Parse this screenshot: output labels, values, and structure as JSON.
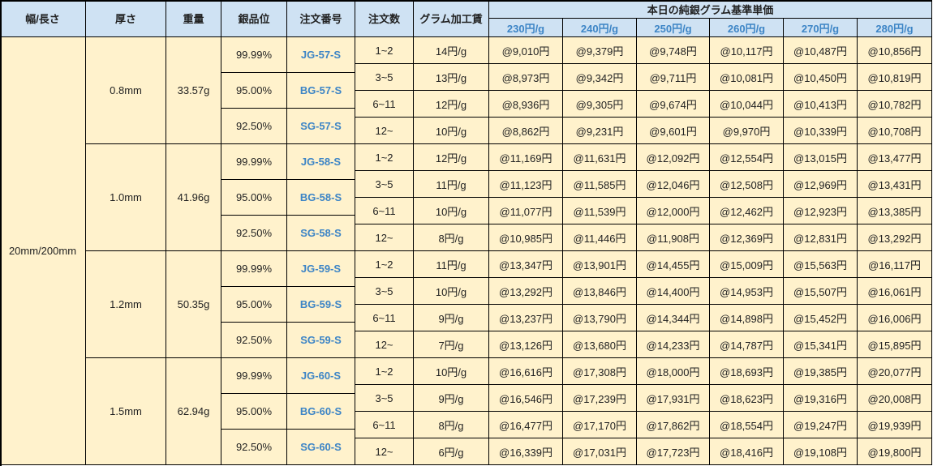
{
  "header": {
    "width_length": "幅/長さ",
    "thickness": "厚さ",
    "weight": "重量",
    "silver_grade": "銀品位",
    "order_number": "注文番号",
    "order_qty": "注文数",
    "gram_fee": "グラム加工賃",
    "base_price_title": "本日の純銀グラム基準単価",
    "base_prices": [
      "230円/g",
      "240円/g",
      "250円/g",
      "260円/g",
      "270円/g",
      "280円/g"
    ]
  },
  "size": "20mm/200mm",
  "blocks": [
    {
      "thickness": "0.8mm",
      "weight": "33.57g",
      "grades": [
        {
          "grade": "99.99%",
          "order": "JG-57-S"
        },
        {
          "grade": "95.00%",
          "order": "BG-57-S"
        },
        {
          "grade": "92.50%",
          "order": "SG-57-S"
        }
      ],
      "rows": [
        {
          "qty": "1~2",
          "fee": "14円/g",
          "prices": [
            "@9,010円",
            "@9,379円",
            "@9,748円",
            "@10,117円",
            "@10,487円",
            "@10,856円"
          ]
        },
        {
          "qty": "3~5",
          "fee": "13円/g",
          "prices": [
            "@8,973円",
            "@9,342円",
            "@9,711円",
            "@10,081円",
            "@10,450円",
            "@10,819円"
          ]
        },
        {
          "qty": "6~11",
          "fee": "12円/g",
          "prices": [
            "@8,936円",
            "@9,305円",
            "@9,674円",
            "@10,044円",
            "@10,413円",
            "@10,782円"
          ]
        },
        {
          "qty": "12~",
          "fee": "10円/g",
          "prices": [
            "@8,862円",
            "@9,231円",
            "@9,601円",
            "@9,970円",
            "@10,339円",
            "@10,708円"
          ]
        }
      ]
    },
    {
      "thickness": "1.0mm",
      "weight": "41.96g",
      "grades": [
        {
          "grade": "99.99%",
          "order": "JG-58-S"
        },
        {
          "grade": "95.00%",
          "order": "BG-58-S"
        },
        {
          "grade": "92.50%",
          "order": "SG-58-S"
        }
      ],
      "rows": [
        {
          "qty": "1~2",
          "fee": "12円/g",
          "prices": [
            "@11,169円",
            "@11,631円",
            "@12,092円",
            "@12,554円",
            "@13,015円",
            "@13,477円"
          ]
        },
        {
          "qty": "3~5",
          "fee": "11円/g",
          "prices": [
            "@11,123円",
            "@11,585円",
            "@12,046円",
            "@12,508円",
            "@12,969円",
            "@13,431円"
          ]
        },
        {
          "qty": "6~11",
          "fee": "10円/g",
          "prices": [
            "@11,077円",
            "@11,539円",
            "@12,000円",
            "@12,462円",
            "@12,923円",
            "@13,385円"
          ]
        },
        {
          "qty": "12~",
          "fee": "8円/g",
          "prices": [
            "@10,985円",
            "@11,446円",
            "@11,908円",
            "@12,369円",
            "@12,831円",
            "@13,292円"
          ]
        }
      ]
    },
    {
      "thickness": "1.2mm",
      "weight": "50.35g",
      "grades": [
        {
          "grade": "99.99%",
          "order": "JG-59-S"
        },
        {
          "grade": "95.00%",
          "order": "BG-59-S"
        },
        {
          "grade": "92.50%",
          "order": "SG-59-S"
        }
      ],
      "rows": [
        {
          "qty": "1~2",
          "fee": "11円/g",
          "prices": [
            "@13,347円",
            "@13,901円",
            "@14,455円",
            "@15,009円",
            "@15,563円",
            "@16,117円"
          ]
        },
        {
          "qty": "3~5",
          "fee": "10円/g",
          "prices": [
            "@13,292円",
            "@13,846円",
            "@14,400円",
            "@14,953円",
            "@15,507円",
            "@16,061円"
          ]
        },
        {
          "qty": "6~11",
          "fee": "9円/g",
          "prices": [
            "@13,237円",
            "@13,790円",
            "@14,344円",
            "@14,898円",
            "@15,452円",
            "@16,006円"
          ]
        },
        {
          "qty": "12~",
          "fee": "7円/g",
          "prices": [
            "@13,126円",
            "@13,680円",
            "@14,233円",
            "@14,787円",
            "@15,341円",
            "@15,895円"
          ]
        }
      ]
    },
    {
      "thickness": "1.5mm",
      "weight": "62.94g",
      "grades": [
        {
          "grade": "99.99%",
          "order": "JG-60-S"
        },
        {
          "grade": "95.00%",
          "order": "BG-60-S"
        },
        {
          "grade": "92.50%",
          "order": "SG-60-S"
        }
      ],
      "rows": [
        {
          "qty": "1~2",
          "fee": "10円/g",
          "prices": [
            "@16,616円",
            "@17,308円",
            "@18,000円",
            "@18,693円",
            "@19,385円",
            "@20,077円"
          ]
        },
        {
          "qty": "3~5",
          "fee": "9円/g",
          "prices": [
            "@16,546円",
            "@17,239円",
            "@17,931円",
            "@18,623円",
            "@19,316円",
            "@20,008円"
          ]
        },
        {
          "qty": "6~11",
          "fee": "8円/g",
          "prices": [
            "@16,477円",
            "@17,170円",
            "@17,862円",
            "@18,554円",
            "@19,247円",
            "@19,939円"
          ]
        },
        {
          "qty": "12~",
          "fee": "6円/g",
          "prices": [
            "@16,339円",
            "@17,031円",
            "@17,723円",
            "@18,416円",
            "@19,108円",
            "@19,800円"
          ]
        }
      ]
    }
  ]
}
